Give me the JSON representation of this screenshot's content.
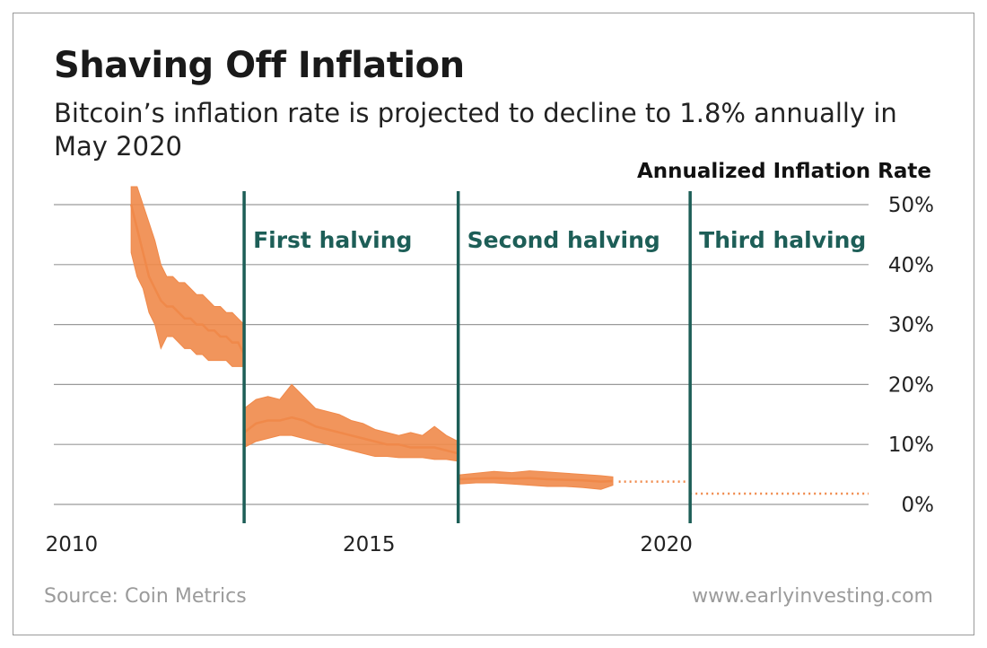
{
  "title": "Shaving Off Inflation",
  "subtitle": "Bitcoin’s inflation rate is projected to decline to 1.8% annually in May 2020",
  "source": "Source: Coin Metrics",
  "website": "www.earlyinvesting.com",
  "colors": {
    "series": "#f0894a",
    "halving_line": "#1d5e57",
    "gridline": "#9a9a9a"
  },
  "chart_data": {
    "type": "line",
    "ylabel": "Annualized Inflation Rate",
    "ylim": [
      0,
      50
    ],
    "xlim": [
      2009.7,
      2023.4
    ],
    "x_ticks": [
      {
        "value": 2010,
        "label": "2010"
      },
      {
        "value": 2015,
        "label": "2015"
      },
      {
        "value": 2020,
        "label": "2020"
      }
    ],
    "y_ticks": [
      {
        "value": 0,
        "label": "0%"
      },
      {
        "value": 10,
        "label": "10%"
      },
      {
        "value": 20,
        "label": "20%"
      },
      {
        "value": 30,
        "label": "30%"
      },
      {
        "value": 40,
        "label": "40%"
      },
      {
        "value": 50,
        "label": "50%"
      }
    ],
    "grid": true,
    "y_axis_side": "right",
    "halvings": [
      {
        "x": 2012.9,
        "label": "First halving"
      },
      {
        "x": 2016.5,
        "label": "Second halving"
      },
      {
        "x": 2020.4,
        "label": "Third halving"
      }
    ],
    "series": [
      {
        "style": "solid",
        "x": [
          2011.0,
          2011.1,
          2011.2,
          2011.3,
          2011.4,
          2011.5,
          2011.6,
          2011.7,
          2011.8,
          2011.9,
          2012.0,
          2012.1,
          2012.2,
          2012.3,
          2012.4,
          2012.5,
          2012.6,
          2012.7,
          2012.8,
          2012.9
        ],
        "values": [
          50,
          46,
          42,
          38,
          36,
          34,
          33,
          33,
          32,
          31,
          31,
          30,
          30,
          29,
          29,
          28,
          28,
          27,
          27,
          25
        ],
        "low": [
          42,
          38,
          36,
          32,
          30,
          26,
          28,
          28,
          27,
          26,
          26,
          25,
          25,
          24,
          24,
          24,
          24,
          23,
          23,
          23
        ],
        "high": [
          53,
          53,
          50,
          47,
          44,
          40,
          38,
          38,
          37,
          37,
          36,
          35,
          35,
          34,
          33,
          33,
          32,
          32,
          31,
          30
        ]
      },
      {
        "style": "solid",
        "x": [
          2012.9,
          2013.1,
          2013.3,
          2013.5,
          2013.7,
          2013.9,
          2014.1,
          2014.3,
          2014.5,
          2014.7,
          2014.9,
          2015.1,
          2015.3,
          2015.5,
          2015.7,
          2015.9,
          2016.1,
          2016.3,
          2016.5
        ],
        "values": [
          12,
          13.5,
          14,
          14,
          14.5,
          14,
          13,
          12.5,
          12,
          11.5,
          11,
          10.5,
          10,
          10,
          9.5,
          9.5,
          9.5,
          9,
          8.5
        ],
        "low": [
          9.5,
          10.5,
          11,
          11.5,
          11.5,
          11,
          10.5,
          10,
          9.5,
          9,
          8.5,
          8,
          8,
          7.8,
          7.8,
          7.8,
          7.5,
          7.5,
          7.2
        ],
        "high": [
          16,
          17.5,
          18,
          17.5,
          20,
          18,
          16,
          15.5,
          15,
          14,
          13.5,
          12.5,
          12,
          11.5,
          12,
          11.5,
          13,
          11.5,
          10.5
        ]
      },
      {
        "style": "solid",
        "x": [
          2016.5,
          2016.8,
          2017.1,
          2017.4,
          2017.7,
          2018.0,
          2018.3,
          2018.6,
          2018.9,
          2019.1
        ],
        "values": [
          4.2,
          4.3,
          4.4,
          4.3,
          4.4,
          4.2,
          4.1,
          4.0,
          3.8,
          3.9
        ],
        "low": [
          3.4,
          3.6,
          3.6,
          3.4,
          3.2,
          3.0,
          3.0,
          2.8,
          2.5,
          3.2
        ],
        "high": [
          4.9,
          5.2,
          5.5,
          5.3,
          5.6,
          5.4,
          5.2,
          5.0,
          4.8,
          4.6
        ]
      },
      {
        "style": "dotted",
        "x": [
          2019.2,
          2020.4
        ],
        "values": [
          3.8,
          3.8
        ]
      },
      {
        "style": "dotted",
        "x": [
          2020.4,
          2023.4
        ],
        "values": [
          1.8,
          1.8
        ]
      }
    ]
  }
}
